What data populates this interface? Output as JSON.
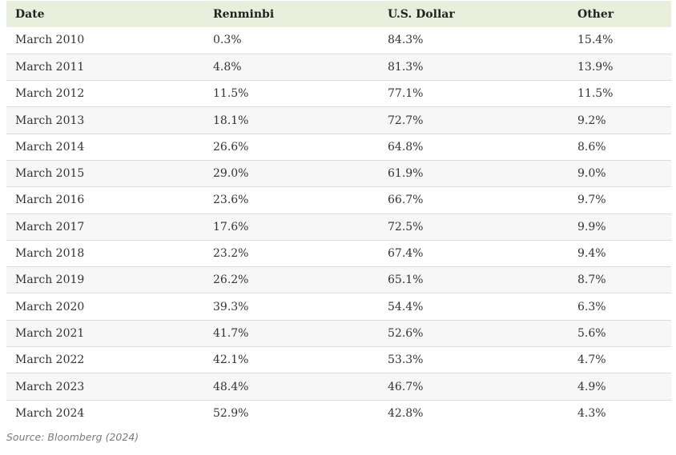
{
  "chart_data": {
    "type": "table",
    "columns": [
      "Date",
      "Renminbi",
      "U.S. Dollar",
      "Other"
    ],
    "rows": [
      [
        "March 2010",
        "0.3%",
        "84.3%",
        "15.4%"
      ],
      [
        "March 2011",
        "4.8%",
        "81.3%",
        "13.9%"
      ],
      [
        "March 2012",
        "11.5%",
        "77.1%",
        "11.5%"
      ],
      [
        "March 2013",
        "18.1%",
        "72.7%",
        "9.2%"
      ],
      [
        "March 2014",
        "26.6%",
        "64.8%",
        "8.6%"
      ],
      [
        "March 2015",
        "29.0%",
        "61.9%",
        "9.0%"
      ],
      [
        "March 2016",
        "23.6%",
        "66.7%",
        "9.7%"
      ],
      [
        "March 2017",
        "17.6%",
        "72.5%",
        "9.9%"
      ],
      [
        "March 2018",
        "23.2%",
        "67.4%",
        "9.4%"
      ],
      [
        "March 2019",
        "26.2%",
        "65.1%",
        "8.7%"
      ],
      [
        "March 2020",
        "39.3%",
        "54.4%",
        "6.3%"
      ],
      [
        "March 2021",
        "41.7%",
        "52.6%",
        "5.6%"
      ],
      [
        "March 2022",
        "42.1%",
        "53.3%",
        "4.7%"
      ],
      [
        "March 2023",
        "48.4%",
        "46.7%",
        "4.9%"
      ],
      [
        "March 2024",
        "52.9%",
        "42.8%",
        "4.3%"
      ]
    ],
    "colors": {
      "header_background": "#e8efdc",
      "row_stripe": "#f7f7f7",
      "row_divider": "#dcdcdc"
    }
  },
  "source": "Source: Bloomberg (2024)"
}
